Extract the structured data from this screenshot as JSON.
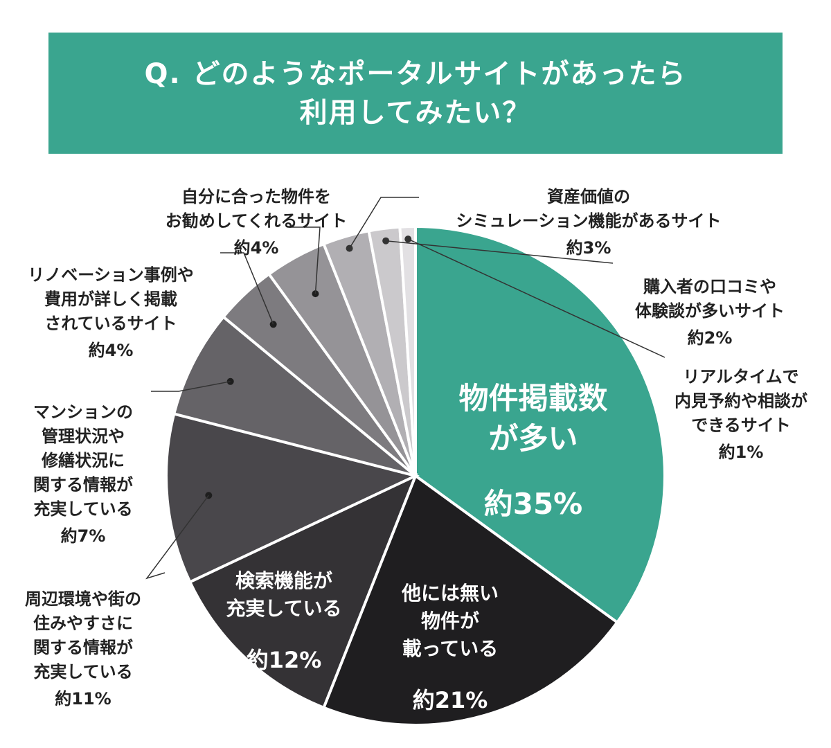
{
  "title": "Q. どのようなポータルサイトがあったら\n利用してみたい？",
  "chart_data": {
    "type": "pie",
    "title": "Q. どのようなポータルサイトがあったら利用してみたい？",
    "slices": [
      {
        "label": "物件掲載数\nが多い",
        "percent_text": "約35%",
        "value": 35,
        "color": "#3aa58f"
      },
      {
        "label": "他には無い\n物件が\n載っている",
        "percent_text": "約21%",
        "value": 21,
        "color": "#1f1e20"
      },
      {
        "label": "検索機能が\n充実している",
        "percent_text": "約12%",
        "value": 12,
        "color": "#343235"
      },
      {
        "label": "周辺環境や街の\n住みやすさに\n関する情報が\n充実している",
        "percent_text": "約11%",
        "value": 11,
        "color": "#49474b"
      },
      {
        "label": "マンションの\n管理状況や\n修繕状況に\n関する情報が\n充実している",
        "percent_text": "約7%",
        "value": 7,
        "color": "#656367"
      },
      {
        "label": "リノベーション事例や\n費用が詳しく掲載\nされているサイト",
        "percent_text": "約4%",
        "value": 4,
        "color": "#7d7b7f"
      },
      {
        "label": "自分に合った物件を\nお勧めしてくれるサイト",
        "percent_text": "約4%",
        "value": 4,
        "color": "#959397"
      },
      {
        "label": "資産価値の\nシミュレーション機能があるサイト",
        "percent_text": "約3%",
        "value": 3,
        "color": "#b1afb3"
      },
      {
        "label": "購入者の口コミや\n体験談が多いサイト",
        "percent_text": "約2%",
        "value": 2,
        "color": "#cbc9cc"
      },
      {
        "label": "リアルタイムで\n内見予約や相談が\nできるサイト",
        "percent_text": "約1%",
        "value": 1,
        "color": "#e2e0e3"
      }
    ]
  }
}
